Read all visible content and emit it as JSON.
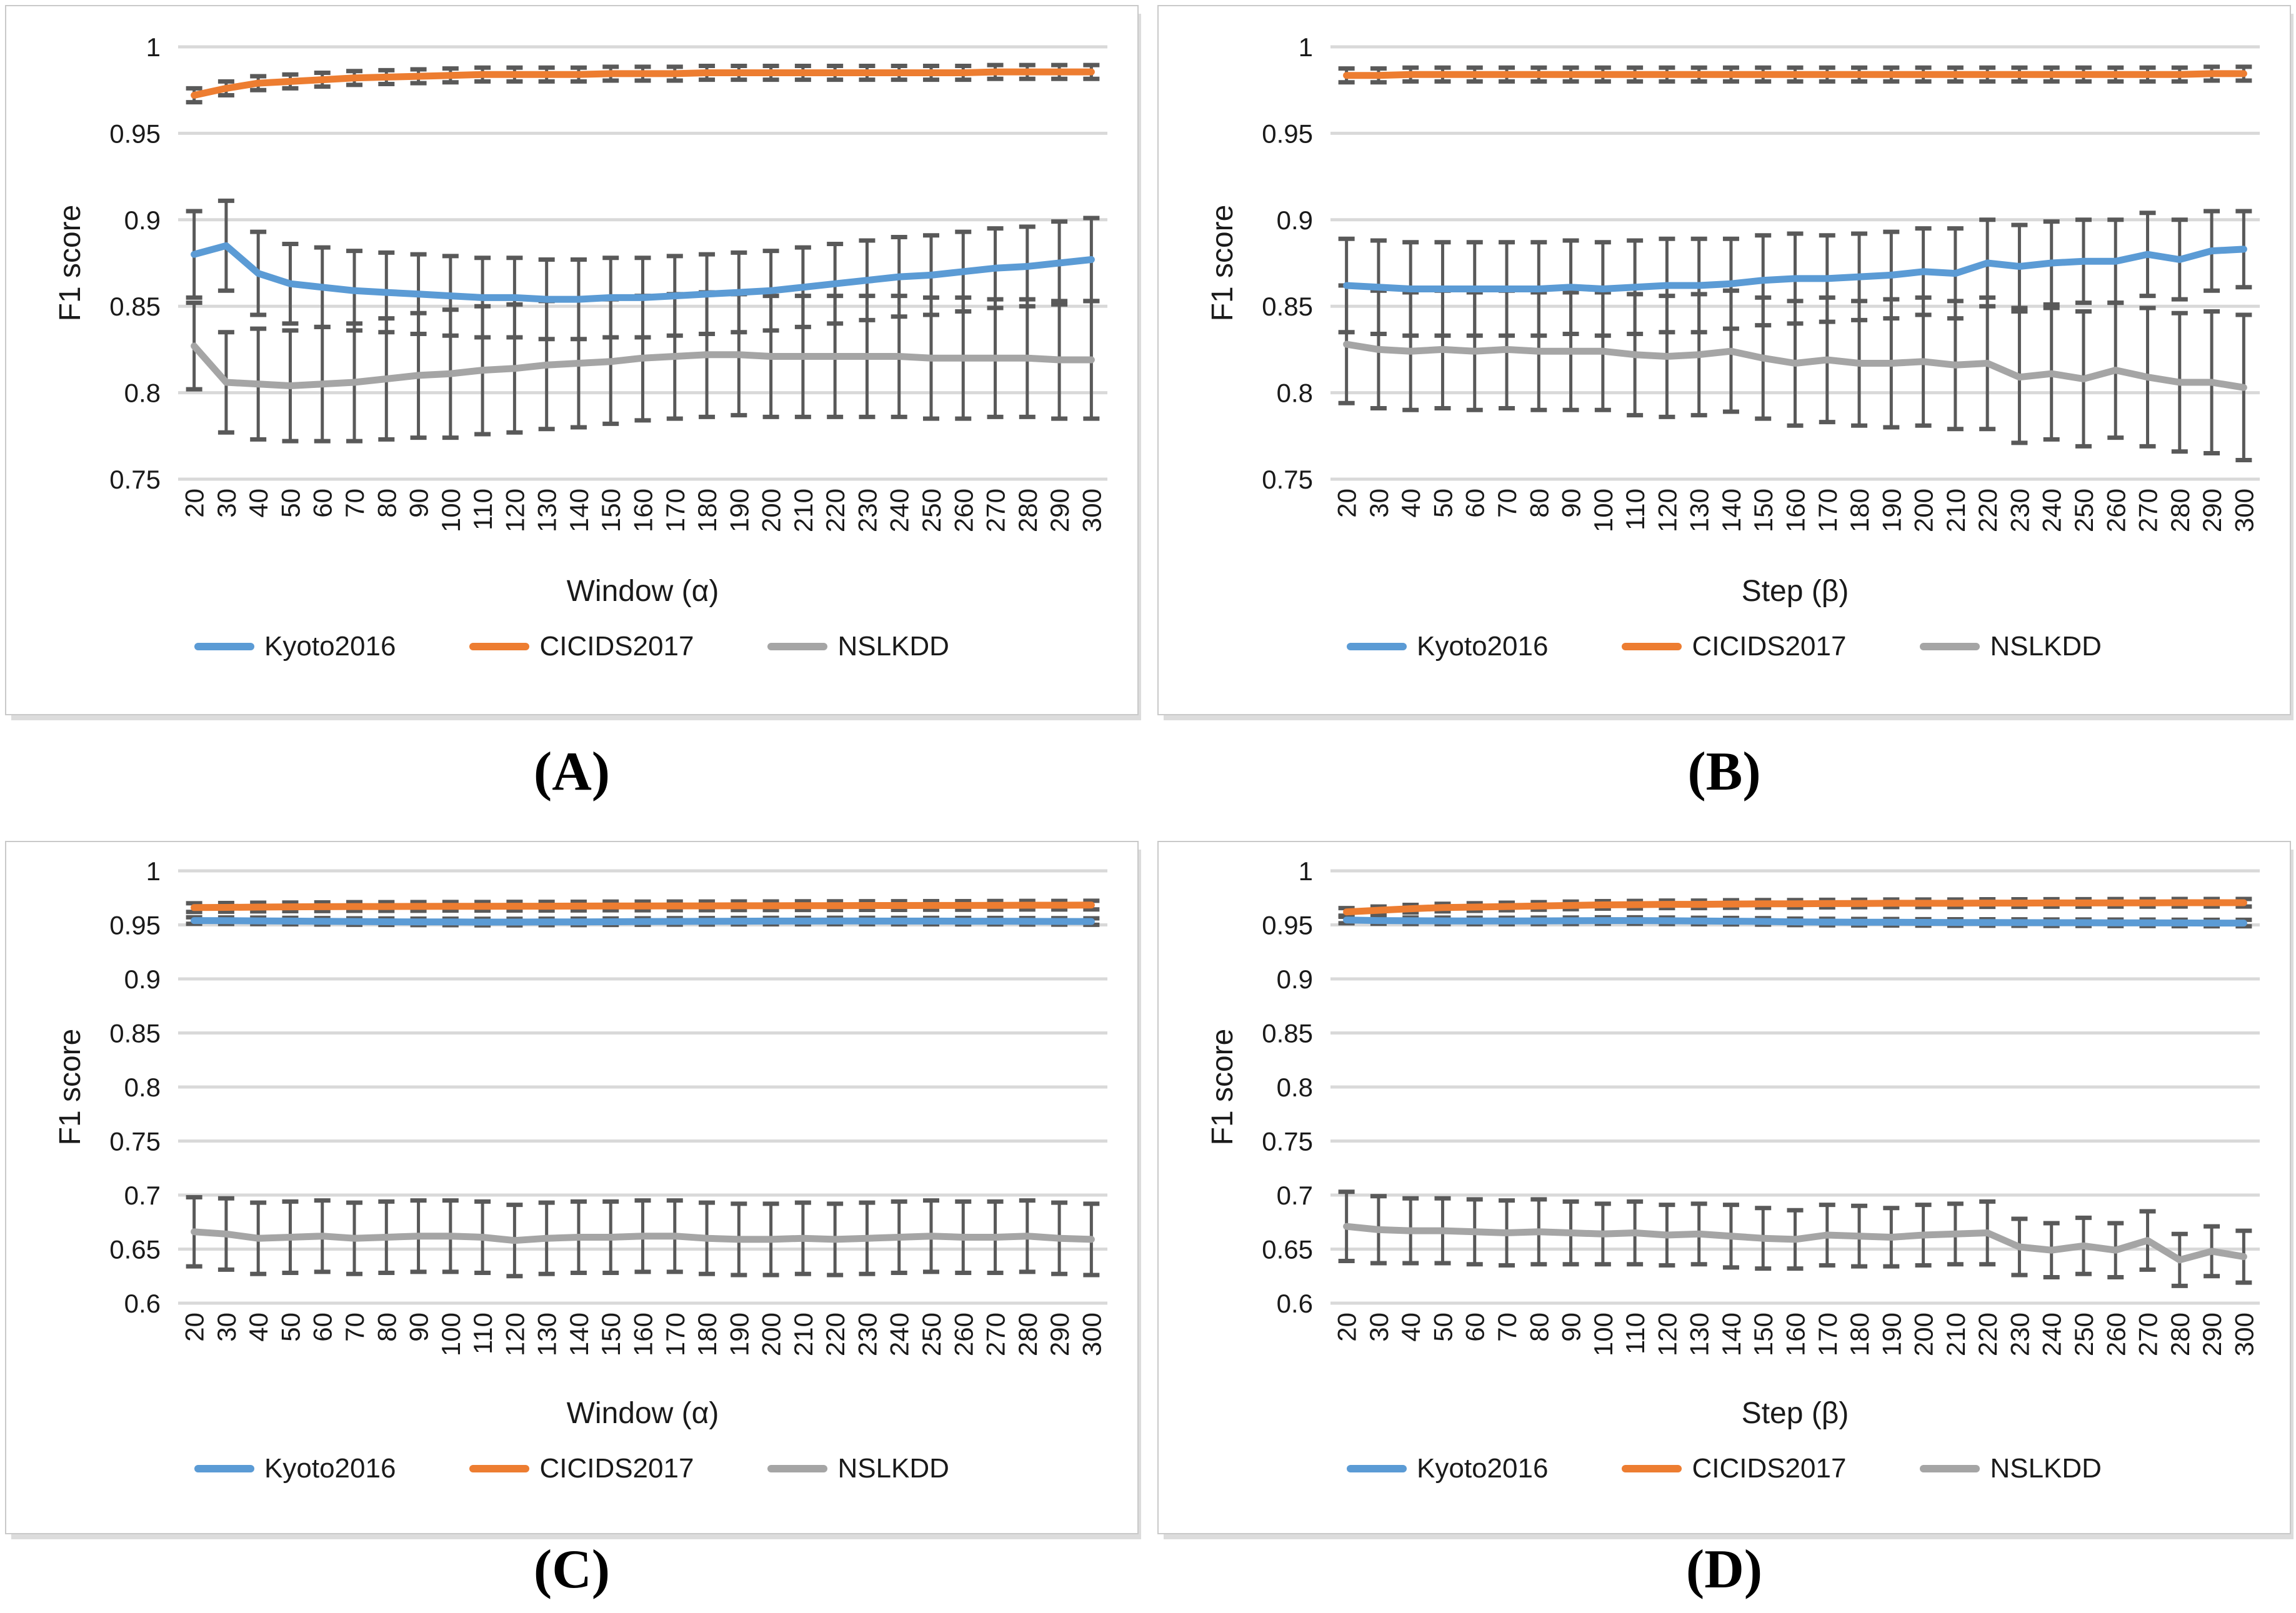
{
  "figure": {
    "background": "#ffffff",
    "grid_color": "#d9d9d9",
    "error_bar_color": "#595959",
    "text_color": "#1a1a1a",
    "series_colors": {
      "Kyoto2016": "#5B9BD5",
      "CICIDS2017": "#ED7D31",
      "NSLKDD": "#A5A5A5"
    }
  },
  "chart_data": [
    {
      "caption": "(A)",
      "type": "line",
      "xlabel": "Window (α)",
      "ylabel": "F1 score",
      "x": [
        20,
        30,
        40,
        50,
        60,
        70,
        80,
        90,
        100,
        110,
        120,
        130,
        140,
        150,
        160,
        170,
        180,
        190,
        200,
        210,
        220,
        230,
        240,
        250,
        260,
        270,
        280,
        290,
        300
      ],
      "ylim": [
        0.75,
        1.0
      ],
      "yticks": [
        "1",
        "0.95",
        "0.9",
        "0.85",
        "0.8",
        "0.75"
      ],
      "grid": true,
      "legend_position": "bottom",
      "error_bars": true,
      "series": [
        {
          "name": "Kyoto2016",
          "color": "#5B9BD5",
          "values": [
            0.88,
            0.885,
            0.869,
            0.863,
            0.861,
            0.859,
            0.858,
            0.857,
            0.856,
            0.855,
            0.855,
            0.854,
            0.854,
            0.855,
            0.855,
            0.856,
            0.857,
            0.858,
            0.859,
            0.861,
            0.863,
            0.865,
            0.867,
            0.868,
            0.87,
            0.872,
            0.873,
            0.875,
            0.877
          ],
          "err": [
            0.025,
            0.026,
            0.024,
            0.023,
            0.023,
            0.023,
            0.023,
            0.023,
            0.023,
            0.023,
            0.023,
            0.023,
            0.023,
            0.023,
            0.023,
            0.023,
            0.023,
            0.023,
            0.023,
            0.023,
            0.023,
            0.023,
            0.023,
            0.023,
            0.023,
            0.023,
            0.023,
            0.024,
            0.024
          ]
        },
        {
          "name": "CICIDS2017",
          "color": "#ED7D31",
          "values": [
            0.972,
            0.976,
            0.979,
            0.98,
            0.981,
            0.982,
            0.9825,
            0.983,
            0.9835,
            0.984,
            0.984,
            0.984,
            0.984,
            0.9845,
            0.9845,
            0.9845,
            0.985,
            0.985,
            0.985,
            0.985,
            0.985,
            0.985,
            0.985,
            0.985,
            0.985,
            0.9855,
            0.9855,
            0.9855,
            0.9855
          ],
          "err": 0.004
        },
        {
          "name": "NSLKDD",
          "color": "#A5A5A5",
          "values": [
            0.827,
            0.806,
            0.805,
            0.804,
            0.805,
            0.806,
            0.808,
            0.81,
            0.811,
            0.813,
            0.814,
            0.816,
            0.817,
            0.818,
            0.82,
            0.821,
            0.822,
            0.822,
            0.821,
            0.821,
            0.821,
            0.821,
            0.821,
            0.82,
            0.82,
            0.82,
            0.82,
            0.819,
            0.819
          ],
          "err": [
            0.025,
            0.029,
            0.032,
            0.032,
            0.033,
            0.034,
            0.035,
            0.036,
            0.037,
            0.037,
            0.037,
            0.037,
            0.037,
            0.036,
            0.036,
            0.036,
            0.036,
            0.035,
            0.035,
            0.035,
            0.035,
            0.035,
            0.035,
            0.035,
            0.035,
            0.034,
            0.034,
            0.034,
            0.034
          ]
        }
      ]
    },
    {
      "caption": "(B)",
      "type": "line",
      "xlabel": "Step (β)",
      "ylabel": "F1 score",
      "x": [
        20,
        30,
        40,
        50,
        60,
        70,
        80,
        90,
        100,
        110,
        120,
        130,
        140,
        150,
        160,
        170,
        180,
        190,
        200,
        210,
        220,
        230,
        240,
        250,
        260,
        270,
        280,
        290,
        300
      ],
      "ylim": [
        0.75,
        1.0
      ],
      "yticks": [
        "1",
        "0.95",
        "0.9",
        "0.85",
        "0.8",
        "0.75"
      ],
      "grid": true,
      "legend_position": "bottom",
      "error_bars": true,
      "series": [
        {
          "name": "Kyoto2016",
          "color": "#5B9BD5",
          "values": [
            0.862,
            0.861,
            0.86,
            0.86,
            0.86,
            0.86,
            0.86,
            0.861,
            0.86,
            0.861,
            0.862,
            0.862,
            0.863,
            0.865,
            0.866,
            0.866,
            0.867,
            0.868,
            0.87,
            0.869,
            0.875,
            0.873,
            0.875,
            0.876,
            0.876,
            0.88,
            0.877,
            0.882,
            0.883
          ],
          "err": [
            0.027,
            0.027,
            0.027,
            0.027,
            0.027,
            0.027,
            0.027,
            0.027,
            0.027,
            0.027,
            0.027,
            0.027,
            0.026,
            0.026,
            0.026,
            0.025,
            0.025,
            0.025,
            0.025,
            0.026,
            0.025,
            0.024,
            0.024,
            0.024,
            0.024,
            0.024,
            0.023,
            0.023,
            0.022
          ]
        },
        {
          "name": "CICIDS2017",
          "color": "#ED7D31",
          "values": [
            0.9835,
            0.9835,
            0.984,
            0.984,
            0.984,
            0.984,
            0.984,
            0.984,
            0.984,
            0.984,
            0.984,
            0.984,
            0.984,
            0.984,
            0.984,
            0.984,
            0.984,
            0.984,
            0.984,
            0.984,
            0.984,
            0.984,
            0.984,
            0.984,
            0.984,
            0.984,
            0.984,
            0.9845,
            0.9845
          ],
          "err": 0.004
        },
        {
          "name": "NSLKDD",
          "color": "#A5A5A5",
          "values": [
            0.828,
            0.825,
            0.824,
            0.825,
            0.824,
            0.825,
            0.824,
            0.824,
            0.824,
            0.822,
            0.821,
            0.822,
            0.824,
            0.82,
            0.817,
            0.819,
            0.817,
            0.817,
            0.818,
            0.816,
            0.817,
            0.809,
            0.811,
            0.808,
            0.813,
            0.809,
            0.806,
            0.806,
            0.803
          ],
          "err": [
            0.034,
            0.034,
            0.034,
            0.034,
            0.034,
            0.034,
            0.034,
            0.034,
            0.034,
            0.035,
            0.035,
            0.035,
            0.035,
            0.035,
            0.036,
            0.036,
            0.036,
            0.037,
            0.037,
            0.037,
            0.038,
            0.038,
            0.038,
            0.039,
            0.039,
            0.04,
            0.04,
            0.041,
            0.042
          ]
        }
      ]
    },
    {
      "caption": "(C)",
      "type": "line",
      "xlabel": "Window (α)",
      "ylabel": "F1 score",
      "x": [
        20,
        30,
        40,
        50,
        60,
        70,
        80,
        90,
        100,
        110,
        120,
        130,
        140,
        150,
        160,
        170,
        180,
        190,
        200,
        210,
        220,
        230,
        240,
        250,
        260,
        270,
        280,
        290,
        300
      ],
      "ylim": [
        0.6,
        1.0
      ],
      "yticks": [
        "1",
        "0.95",
        "0.9",
        "0.85",
        "0.8",
        "0.75",
        "0.7",
        "0.65",
        "0.6"
      ],
      "grid": true,
      "legend_position": "bottom",
      "error_bars": true,
      "series": [
        {
          "name": "Kyoto2016",
          "color": "#5B9BD5",
          "values": [
            0.954,
            0.9539,
            0.9537,
            0.9535,
            0.9533,
            0.9531,
            0.9529,
            0.9528,
            0.9527,
            0.9526,
            0.9526,
            0.9527,
            0.9528,
            0.9529,
            0.9531,
            0.9532,
            0.9533,
            0.9534,
            0.9535,
            0.9535,
            0.9536,
            0.9536,
            0.9535,
            0.9535,
            0.9534,
            0.9534,
            0.9533,
            0.9532,
            0.9531
          ],
          "err": 0.003
        },
        {
          "name": "CICIDS2017",
          "color": "#ED7D31",
          "values": [
            0.966,
            0.9662,
            0.9665,
            0.9667,
            0.9668,
            0.967,
            0.967,
            0.9671,
            0.9672,
            0.9672,
            0.9673,
            0.9673,
            0.9674,
            0.9675,
            0.9675,
            0.9676,
            0.9676,
            0.9677,
            0.9677,
            0.9678,
            0.9678,
            0.9679,
            0.9679,
            0.968,
            0.968,
            0.9681,
            0.9682,
            0.9682,
            0.9683
          ],
          "err": 0.004
        },
        {
          "name": "NSLKDD",
          "color": "#A5A5A5",
          "values": [
            0.666,
            0.664,
            0.66,
            0.661,
            0.662,
            0.66,
            0.661,
            0.662,
            0.662,
            0.661,
            0.658,
            0.66,
            0.661,
            0.661,
            0.662,
            0.662,
            0.66,
            0.659,
            0.659,
            0.66,
            0.659,
            0.66,
            0.661,
            0.662,
            0.661,
            0.661,
            0.662,
            0.66,
            0.659
          ],
          "err": [
            0.032,
            0.033,
            0.033,
            0.033,
            0.033,
            0.033,
            0.033,
            0.033,
            0.033,
            0.033,
            0.033,
            0.033,
            0.033,
            0.033,
            0.033,
            0.033,
            0.033,
            0.033,
            0.033,
            0.033,
            0.033,
            0.033,
            0.033,
            0.033,
            0.033,
            0.033,
            0.033,
            0.033,
            0.033
          ]
        }
      ]
    },
    {
      "caption": "(D)",
      "type": "line",
      "xlabel": "Step (β)",
      "ylabel": "F1 score",
      "x": [
        20,
        30,
        40,
        50,
        60,
        70,
        80,
        90,
        100,
        110,
        120,
        130,
        140,
        150,
        160,
        170,
        180,
        190,
        200,
        210,
        220,
        230,
        240,
        250,
        260,
        270,
        280,
        290,
        300
      ],
      "ylim": [
        0.6,
        1.0
      ],
      "yticks": [
        "1",
        "0.95",
        "0.9",
        "0.85",
        "0.8",
        "0.75",
        "0.7",
        "0.65",
        "0.6"
      ],
      "grid": true,
      "legend_position": "bottom",
      "error_bars": true,
      "series": [
        {
          "name": "Kyoto2016",
          "color": "#5B9BD5",
          "values": [
            0.9545,
            0.954,
            0.9538,
            0.9537,
            0.9536,
            0.9536,
            0.9537,
            0.9538,
            0.954,
            0.954,
            0.9538,
            0.9536,
            0.9534,
            0.9532,
            0.9528,
            0.9526,
            0.9525,
            0.9524,
            0.9523,
            0.9522,
            0.9522,
            0.9521,
            0.952,
            0.952,
            0.9519,
            0.9519,
            0.9518,
            0.9517,
            0.9517
          ],
          "err": 0.003
        },
        {
          "name": "CICIDS2017",
          "color": "#ED7D31",
          "values": [
            0.962,
            0.9635,
            0.965,
            0.966,
            0.9665,
            0.967,
            0.9675,
            0.968,
            0.9685,
            0.9687,
            0.969,
            0.969,
            0.9693,
            0.9695,
            0.9695,
            0.9697,
            0.9698,
            0.97,
            0.97,
            0.97,
            0.9702,
            0.9702,
            0.9703,
            0.9703,
            0.9704,
            0.9704,
            0.9705,
            0.9705,
            0.9705
          ],
          "err": 0.0035
        },
        {
          "name": "NSLKDD",
          "color": "#A5A5A5",
          "values": [
            0.671,
            0.668,
            0.667,
            0.667,
            0.666,
            0.665,
            0.666,
            0.665,
            0.664,
            0.665,
            0.663,
            0.664,
            0.662,
            0.66,
            0.659,
            0.663,
            0.662,
            0.661,
            0.663,
            0.664,
            0.665,
            0.652,
            0.649,
            0.653,
            0.649,
            0.658,
            0.64,
            0.648,
            0.643
          ],
          "err": [
            0.032,
            0.031,
            0.03,
            0.03,
            0.03,
            0.03,
            0.03,
            0.029,
            0.028,
            0.029,
            0.028,
            0.028,
            0.029,
            0.028,
            0.027,
            0.028,
            0.028,
            0.027,
            0.028,
            0.028,
            0.029,
            0.026,
            0.025,
            0.026,
            0.025,
            0.027,
            0.024,
            0.023,
            0.024
          ]
        }
      ]
    }
  ]
}
